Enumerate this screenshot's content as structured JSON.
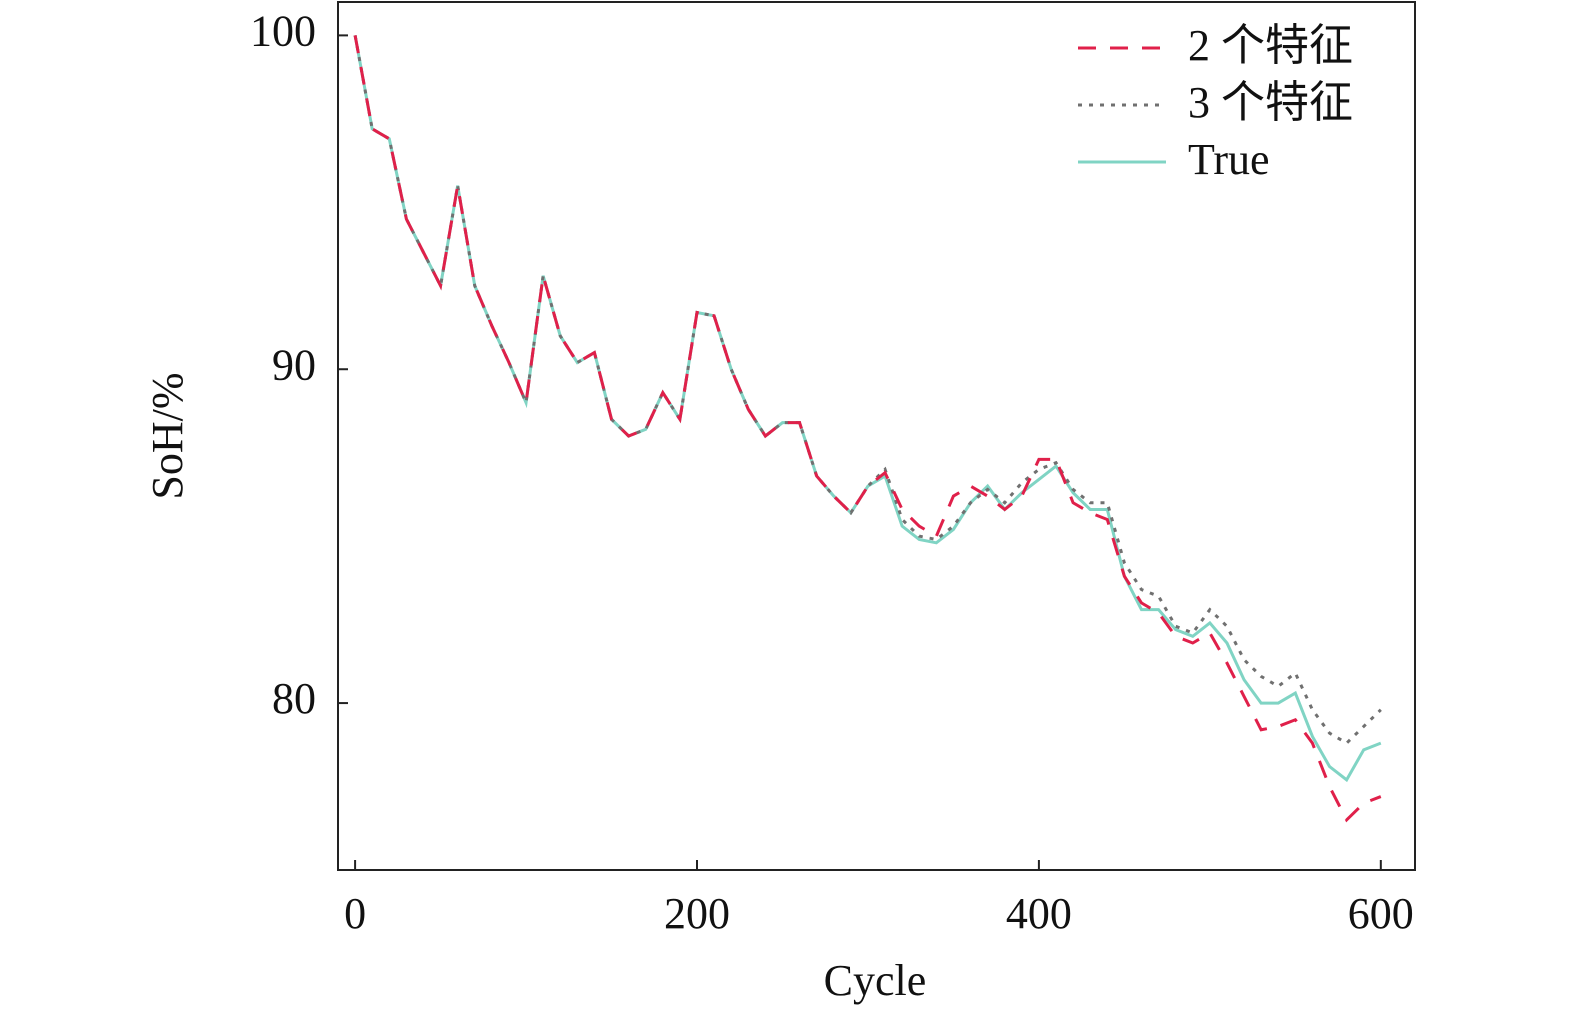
{
  "chart_data": {
    "type": "line",
    "xlabel": "Cycle",
    "ylabel": "SoH/%",
    "x": [
      0,
      10,
      20,
      30,
      40,
      50,
      60,
      70,
      80,
      90,
      100,
      110,
      120,
      130,
      140,
      150,
      160,
      170,
      180,
      190,
      200,
      210,
      220,
      230,
      240,
      250,
      260,
      270,
      280,
      290,
      300,
      310,
      320,
      330,
      340,
      350,
      360,
      370,
      380,
      390,
      400,
      410,
      420,
      430,
      440,
      450,
      460,
      470,
      480,
      490,
      500,
      510,
      520,
      530,
      540,
      550,
      560,
      570,
      580,
      590,
      600
    ],
    "series": [
      {
        "name": "2 个特征",
        "color": "#e0204a",
        "dash": "dashed",
        "values": [
          100,
          97.2,
          96.9,
          94.5,
          93.5,
          92.5,
          95.5,
          92.5,
          91.3,
          90.2,
          89.0,
          92.8,
          91.0,
          90.2,
          90.5,
          88.5,
          88.0,
          88.2,
          89.3,
          88.5,
          91.7,
          91.6,
          90.0,
          88.8,
          88.0,
          88.4,
          88.4,
          86.8,
          86.2,
          85.7,
          86.5,
          86.9,
          85.8,
          85.3,
          85.0,
          86.2,
          86.5,
          86.2,
          85.8,
          86.2,
          87.3,
          87.3,
          86.0,
          85.7,
          85.5,
          83.8,
          83.0,
          82.7,
          82.0,
          81.8,
          82.1,
          81.2,
          80.2,
          79.2,
          79.3,
          79.5,
          78.8,
          77.5,
          76.5,
          77.0,
          77.2
        ]
      },
      {
        "name": "3 个特征",
        "color": "#707070",
        "dash": "dotted",
        "values": [
          100,
          97.2,
          96.9,
          94.5,
          93.5,
          92.5,
          95.5,
          92.5,
          91.3,
          90.2,
          89.0,
          92.8,
          91.0,
          90.2,
          90.5,
          88.5,
          88.0,
          88.2,
          89.3,
          88.5,
          91.7,
          91.6,
          90.0,
          88.8,
          88.0,
          88.4,
          88.4,
          86.8,
          86.2,
          85.7,
          86.5,
          87.0,
          85.5,
          85.0,
          84.9,
          85.3,
          86.0,
          86.4,
          86.0,
          86.6,
          87.0,
          87.2,
          86.4,
          86.0,
          86.0,
          84.2,
          83.4,
          83.2,
          82.3,
          82.1,
          82.8,
          82.3,
          81.3,
          80.8,
          80.5,
          80.9,
          79.8,
          79.1,
          78.8,
          79.3,
          79.8
        ]
      },
      {
        "name": "True",
        "color": "#80d4c4",
        "dash": "solid",
        "values": [
          100,
          97.2,
          96.9,
          94.5,
          93.5,
          92.5,
          95.5,
          92.5,
          91.3,
          90.2,
          89.0,
          92.8,
          91.0,
          90.2,
          90.5,
          88.5,
          88.0,
          88.2,
          89.3,
          88.5,
          91.7,
          91.6,
          90.0,
          88.8,
          88.0,
          88.4,
          88.4,
          86.8,
          86.2,
          85.7,
          86.5,
          86.8,
          85.3,
          84.9,
          84.8,
          85.2,
          86.0,
          86.5,
          85.8,
          86.3,
          86.7,
          87.1,
          86.3,
          85.8,
          85.8,
          83.8,
          82.8,
          82.8,
          82.2,
          82.0,
          82.4,
          81.8,
          80.7,
          80.0,
          80.0,
          80.3,
          79.0,
          78.1,
          77.7,
          78.6,
          78.8
        ]
      }
    ],
    "xlim": [
      -10,
      620
    ],
    "ylim": [
      75,
      101
    ],
    "xticks": [
      0,
      200,
      400,
      600
    ],
    "yticks": [
      80,
      90,
      100
    ],
    "legend": "upper right",
    "grid": false
  }
}
